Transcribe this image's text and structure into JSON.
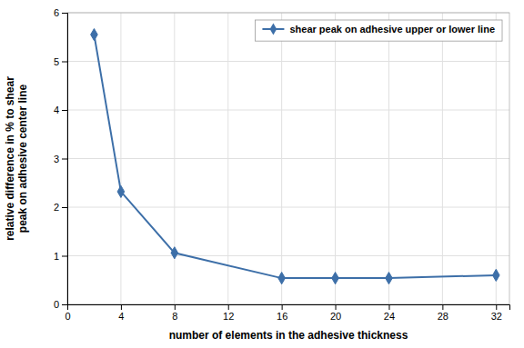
{
  "chart_data": {
    "type": "line",
    "x": [
      2,
      4,
      8,
      16,
      20,
      24,
      32
    ],
    "series": [
      {
        "name": "shear peak on adhesive upper or lower line",
        "color": "#3d6fa8",
        "marker": "diamond",
        "values": [
          5.55,
          2.32,
          1.06,
          0.54,
          0.54,
          0.54,
          0.6
        ]
      }
    ],
    "xlabel": "number of elements in the adhesive thickness",
    "ylabel": "relative difference in % to shear\npeak on adhesive center line",
    "xlim": [
      0,
      33
    ],
    "ylim": [
      0,
      6
    ],
    "xticks": [
      0,
      4,
      8,
      12,
      16,
      20,
      24,
      28,
      32
    ],
    "yticks": [
      0,
      1,
      2,
      3,
      4,
      5,
      6
    ],
    "grid": true,
    "legend": "upper right"
  }
}
